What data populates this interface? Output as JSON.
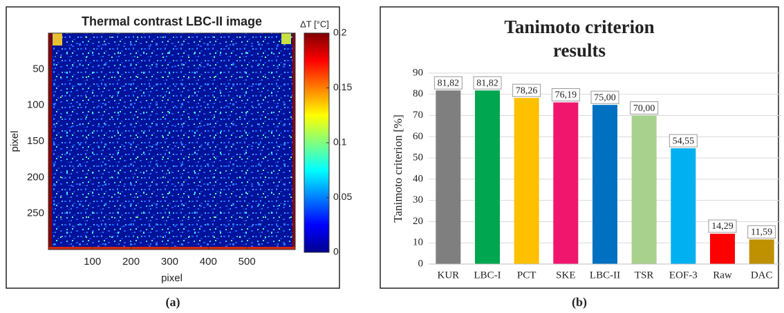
{
  "chart_data": [
    {
      "type": "heatmap",
      "title": "Thermal contrast LBC-II image",
      "xlabel": "pixel",
      "ylabel": "pixel",
      "xlim": [
        -14,
        625
      ],
      "ylim": [
        0,
        300
      ],
      "xticks": [
        100,
        200,
        300,
        400,
        500
      ],
      "yticks": [
        50,
        100,
        150,
        200,
        250
      ],
      "colorbar": {
        "label": "ΔT [°C]",
        "lim": [
          0,
          0.2
        ],
        "ticks": [
          0,
          0.05,
          0.1,
          0.15,
          0.2
        ]
      },
      "caption": "(a)"
    },
    {
      "type": "bar",
      "title": [
        "Tanimoto criterion",
        "results"
      ],
      "ylabel": "Tanimoto criterion [%]",
      "categories": [
        "KUR",
        "LBC-I",
        "PCT",
        "SKE",
        "LBC-II",
        "TSR",
        "EOF-3",
        "Raw",
        "DAC"
      ],
      "values": [
        81.82,
        81.82,
        78.26,
        76.19,
        75.0,
        70.0,
        54.55,
        14.29,
        11.59
      ],
      "value_labels": [
        "81,82",
        "81,82",
        "78,26",
        "76,19",
        "75,00",
        "70,00",
        "54,55",
        "14,29",
        "11,59"
      ],
      "colors": [
        "#7f7f7f",
        "#00a650",
        "#ffc000",
        "#f0166e",
        "#0070c0",
        "#a9d18e",
        "#00b0f0",
        "#ff0000",
        "#bf9000"
      ],
      "ylim": [
        0,
        90
      ],
      "yticks": [
        0,
        10,
        20,
        30,
        40,
        50,
        60,
        70,
        80,
        90
      ],
      "grid": true,
      "caption": "(b)"
    }
  ]
}
